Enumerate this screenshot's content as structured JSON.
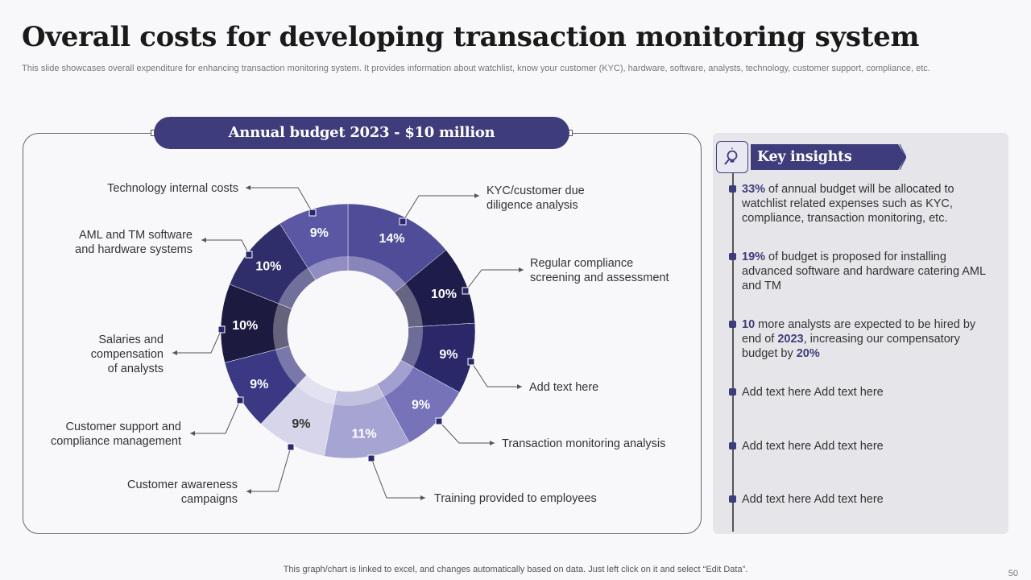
{
  "header": {
    "title": "Overall costs for developing transaction monitoring system",
    "subtitle": "This slide showcases overall expenditure for enhancing transaction monitoring system. It provides information about watchlist, know your customer (KYC), hardware, software, analysts, technology, customer support, compliance, etc."
  },
  "budget_label": "Annual budget 2023 - $10 million",
  "chart_data": {
    "type": "pie",
    "variant": "donut",
    "title": "Annual budget 2023 - $10 million",
    "units": "%",
    "slices": [
      {
        "label": "KYC/customer due diligence analysis",
        "value": 14,
        "color": "#4f4c98"
      },
      {
        "label": "Regular compliance screening and assessment",
        "value": 10,
        "color": "#1e1c4a"
      },
      {
        "label": "Add text here",
        "value": 9,
        "color": "#2a2869"
      },
      {
        "label": "Transaction monitoring analysis",
        "value": 9,
        "color": "#7673b9"
      },
      {
        "label": "Training provided to employees",
        "value": 11,
        "color": "#a6a4d2"
      },
      {
        "label": "Customer awareness campaigns",
        "value": 9,
        "color": "#d6d5ea"
      },
      {
        "label": "Customer support and compliance management",
        "value": 9,
        "color": "#3b3984"
      },
      {
        "label": "Salaries and compensation of analysts",
        "value": 10,
        "color": "#1c1a3f"
      },
      {
        "label": "AML and TM software and hardware systems",
        "value": 10,
        "color": "#2f2d6a"
      },
      {
        "label": "Technology internal costs",
        "value": 9,
        "color": "#5a57a5"
      }
    ]
  },
  "callouts": {
    "kyc": "KYC/customer due diligence analysis",
    "regular": "Regular compliance screening and assessment",
    "addtext": "Add text here",
    "tma": "Transaction monitoring analysis",
    "training": "Training provided to employees",
    "awareness": "Customer awareness campaigns",
    "support": "Customer support and compliance management",
    "salaries": "Salaries and compensation of analysts",
    "aml": "AML and TM software and hardware systems",
    "tech": "Technology internal costs"
  },
  "insights": {
    "title": "Key insights",
    "items": [
      {
        "pre": "",
        "b1": "33%",
        "mid": " of annual budget will be allocated to watchlist related expenses such as KYC, compliance, transaction monitoring, etc.",
        "b2": "",
        "post": "",
        "b3": ""
      },
      {
        "pre": "",
        "b1": "19%",
        "mid": " of budget is proposed for installing advanced software and hardware catering AML and TM",
        "b2": "",
        "post": "",
        "b3": ""
      },
      {
        "pre": "",
        "b1": "10",
        "mid": " more analysts are expected to be hired by end of ",
        "b2": "2023",
        "post": ", increasing our compensatory budget by ",
        "b3": "20%"
      },
      {
        "pre": "Add text here Add text here",
        "b1": "",
        "mid": "",
        "b2": "",
        "post": "",
        "b3": ""
      },
      {
        "pre": "Add text here Add text here",
        "b1": "",
        "mid": "",
        "b2": "",
        "post": "",
        "b3": ""
      },
      {
        "pre": "Add text here Add text here",
        "b1": "",
        "mid": "",
        "b2": "",
        "post": "",
        "b3": ""
      }
    ]
  },
  "footer": {
    "note": "This graph/chart is linked to excel,  and changes automatically based on data. Just left click on it and select “Edit Data”.",
    "page": "50"
  },
  "colors": {
    "accent": "#3f3c7c",
    "panel_bg": "#e6e6ea"
  }
}
